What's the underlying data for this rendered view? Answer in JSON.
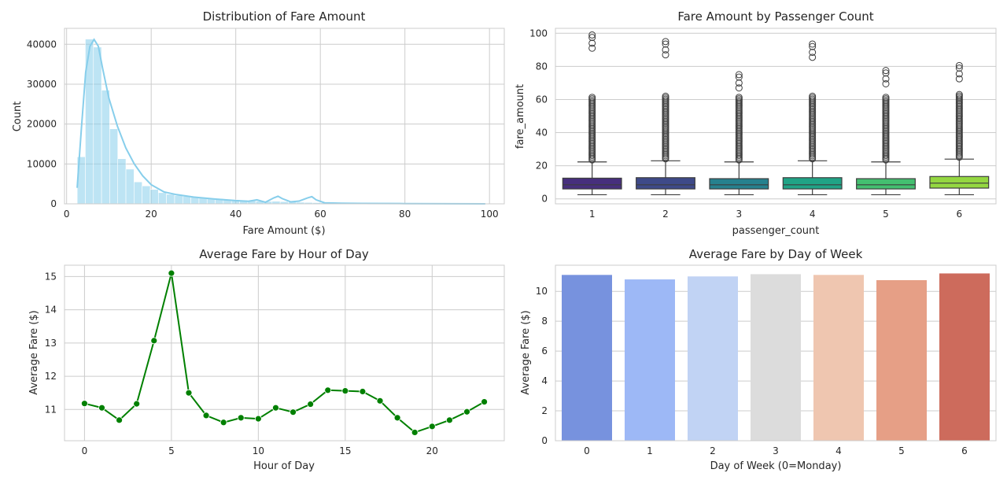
{
  "chart_data": [
    {
      "type": "bar",
      "title": "Distribution of Fare Amount",
      "xlabel": "Fare Amount ($)",
      "ylabel": "Count",
      "xlim": [
        -0.5,
        103.5
      ],
      "ylim": [
        0,
        44000
      ],
      "xticks": [
        0,
        20,
        40,
        60,
        80,
        100
      ],
      "yticks": [
        0,
        10000,
        20000,
        30000,
        40000
      ],
      "bin_width": 1.92,
      "bin_start": 2.5,
      "counts": [
        11800,
        41300,
        39300,
        28500,
        18800,
        11300,
        8700,
        5500,
        4500,
        3600,
        2800,
        2400,
        2100,
        1900,
        1700,
        1500,
        1400,
        1300,
        1150,
        1000,
        900,
        800,
        700,
        600,
        650,
        550,
        450,
        400,
        350,
        300,
        250,
        250,
        200,
        150,
        150,
        120,
        100,
        100,
        80,
        80,
        60,
        60,
        50,
        50,
        40,
        40,
        30,
        30,
        30,
        20
      ],
      "kde_x": [
        2.5,
        3.5,
        4.5,
        5.5,
        6.5,
        7.5,
        8.5,
        10,
        12,
        14,
        16,
        18,
        20,
        23,
        26,
        30,
        35,
        40,
        43,
        45,
        47,
        49,
        50,
        51,
        53,
        55,
        57,
        58,
        59,
        61,
        65,
        70,
        80,
        90,
        99
      ],
      "kde_y": [
        4000,
        19000,
        33000,
        39500,
        41200,
        39500,
        34000,
        26500,
        19500,
        14000,
        10000,
        7000,
        4800,
        3000,
        2300,
        1700,
        1200,
        800,
        650,
        1000,
        400,
        1500,
        1900,
        1300,
        500,
        700,
        1500,
        1800,
        1000,
        250,
        150,
        100,
        50,
        20,
        0
      ],
      "color": "#87ceeb"
    },
    {
      "type": "box",
      "title": "Fare Amount by Passenger Count",
      "xlabel": "passenger_count",
      "ylabel": "fare_amount",
      "categories": [
        "1",
        "2",
        "3",
        "4",
        "5",
        "6"
      ],
      "ylim": [
        -3,
        103
      ],
      "yticks": [
        0,
        20,
        40,
        60,
        80,
        100
      ],
      "boxes": [
        {
          "q1": 6,
          "median": 8.5,
          "q3": 12.5,
          "whisker_low": 2.5,
          "whisker_high": 22.3,
          "outlier_max": 99,
          "color": "#472f7d"
        },
        {
          "q1": 6,
          "median": 8.5,
          "q3": 12.8,
          "whisker_low": 2.5,
          "whisker_high": 23,
          "outlier_max": 95,
          "color": "#3e4a89"
        },
        {
          "q1": 6,
          "median": 8.5,
          "q3": 12.2,
          "whisker_low": 2.5,
          "whisker_high": 22.3,
          "outlier_max": 75,
          "color": "#26818e"
        },
        {
          "q1": 6,
          "median": 8.5,
          "q3": 12.8,
          "whisker_low": 2.5,
          "whisker_high": 23,
          "outlier_max": 93.5,
          "color": "#20a386"
        },
        {
          "q1": 6,
          "median": 8.5,
          "q3": 12.2,
          "whisker_low": 2.5,
          "whisker_high": 22.3,
          "outlier_max": 77.5,
          "color": "#44bf70"
        },
        {
          "q1": 6.5,
          "median": 9.5,
          "q3": 13.5,
          "whisker_low": 2.5,
          "whisker_high": 24,
          "outlier_max": 80.5,
          "color": "#94d741"
        }
      ]
    },
    {
      "type": "line",
      "title": "Average Fare by Hour of Day",
      "xlabel": "Hour of Day",
      "ylabel": "Average Fare ($)",
      "xlim": [
        -1.15,
        24.15
      ],
      "ylim": [
        10.06,
        15.34
      ],
      "xticks": [
        0,
        5,
        10,
        15,
        20
      ],
      "yticks": [
        11,
        12,
        13,
        14,
        15
      ],
      "x": [
        0,
        1,
        2,
        3,
        4,
        5,
        6,
        7,
        8,
        9,
        10,
        11,
        12,
        13,
        14,
        15,
        16,
        17,
        18,
        19,
        20,
        21,
        22,
        23
      ],
      "y": [
        11.18,
        11.05,
        10.68,
        11.17,
        13.07,
        15.1,
        11.5,
        10.82,
        10.61,
        10.75,
        10.72,
        11.05,
        10.92,
        11.16,
        11.58,
        11.56,
        11.54,
        11.26,
        10.75,
        10.31,
        10.49,
        10.68,
        10.93,
        11.23
      ],
      "color": "#008000"
    },
    {
      "type": "bar",
      "title": "Average Fare by Day of Week",
      "xlabel": "Day of Week (0=Monday)",
      "ylabel": "Average Fare ($)",
      "categories": [
        "0",
        "1",
        "2",
        "3",
        "4",
        "5",
        "6"
      ],
      "values": [
        11.1,
        10.8,
        11.0,
        11.15,
        11.1,
        10.75,
        11.2
      ],
      "ylim": [
        0,
        11.75
      ],
      "yticks": [
        0,
        2,
        4,
        6,
        8,
        10
      ],
      "colors": [
        "#7792de",
        "#9db8f6",
        "#c1d3f4",
        "#dcdcdc",
        "#efc6b0",
        "#e69f86",
        "#cd6b5c"
      ]
    }
  ]
}
